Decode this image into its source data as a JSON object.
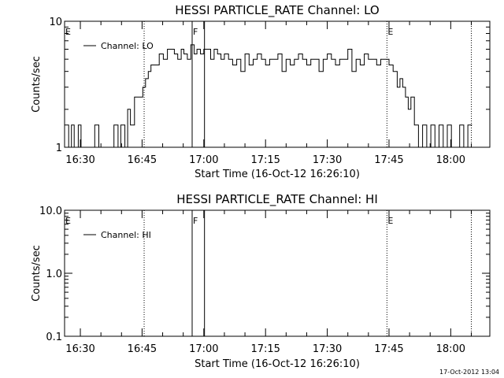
{
  "footer": {
    "timestamp": "17-Oct-2012 13:04"
  },
  "chart_data": [
    {
      "type": "line",
      "title": "HESSI PARTICLE_RATE Channel: LO",
      "xlabel": "Start Time (16-Oct-12 16:26:10)",
      "ylabel": "Counts/sec",
      "y_scale": "log",
      "xlim": [
        "16:26:10",
        "18:09:30"
      ],
      "ylim": [
        1,
        10
      ],
      "x_ticks": [
        "16:30",
        "16:45",
        "17:00",
        "17:15",
        "17:30",
        "17:45",
        "18:00"
      ],
      "y_ticks": [
        "1",
        "10"
      ],
      "legend": {
        "position": "top-left",
        "entries": [
          "Channel: LO"
        ]
      },
      "markers": [
        {
          "label": "E",
          "time": "16:26:10",
          "style": "none"
        },
        {
          "label": "",
          "time": "16:45:30",
          "style": "dotted"
        },
        {
          "label": "F",
          "time": "16:57:10",
          "style": "solid"
        },
        {
          "label": "",
          "time": "17:00:10",
          "style": "solid"
        },
        {
          "label": "E",
          "time": "17:44:30",
          "style": "dotted"
        },
        {
          "label": "",
          "time": "18:05:00",
          "style": "dotted"
        }
      ],
      "series": [
        {
          "name": "Channel: LO",
          "x": [
            "16:26:10",
            "16:27:10",
            "16:27:50",
            "16:28:30",
            "16:29:30",
            "16:30:10",
            "16:31:30",
            "16:32:30",
            "16:33:30",
            "16:34:30",
            "16:36:10",
            "16:37:30",
            "16:38:10",
            "16:39:10",
            "16:39:50",
            "16:40:50",
            "16:41:30",
            "16:42:10",
            "16:43:10",
            "16:44:10",
            "16:45:10",
            "16:45:50",
            "16:46:30",
            "16:47:10",
            "16:48:10",
            "16:49:10",
            "16:50:10",
            "16:51:10",
            "16:52:10",
            "16:52:50",
            "16:53:40",
            "16:54:30",
            "16:55:10",
            "16:56:00",
            "16:56:50",
            "16:57:40",
            "16:58:20",
            "16:59:10",
            "17:00:00",
            "17:00:50",
            "17:01:40",
            "17:02:30",
            "17:03:20",
            "17:04:10",
            "17:05:00",
            "17:06:00",
            "17:07:00",
            "17:08:00",
            "17:09:00",
            "17:10:00",
            "17:11:00",
            "17:12:00",
            "17:13:00",
            "17:14:00",
            "17:15:00",
            "17:16:00",
            "17:17:00",
            "17:18:00",
            "17:19:00",
            "17:20:00",
            "17:21:00",
            "17:22:00",
            "17:23:00",
            "17:24:00",
            "17:25:00",
            "17:26:00",
            "17:27:00",
            "17:28:00",
            "17:29:00",
            "17:30:00",
            "17:31:00",
            "17:32:00",
            "17:33:00",
            "17:34:00",
            "17:35:00",
            "17:36:00",
            "17:37:00",
            "17:38:00",
            "17:39:00",
            "17:40:00",
            "17:41:00",
            "17:42:00",
            "17:43:00",
            "17:44:00",
            "17:45:00",
            "17:46:00",
            "17:47:00",
            "17:47:40",
            "17:48:20",
            "17:49:00",
            "17:49:40",
            "17:50:20",
            "17:51:10",
            "17:52:10",
            "17:53:10",
            "17:54:10",
            "17:55:10",
            "17:56:10",
            "17:57:10",
            "17:58:10",
            "17:59:10",
            "18:00:10",
            "18:01:10",
            "18:02:10",
            "18:03:10",
            "18:04:10",
            "18:05:10"
          ],
          "y": [
            1.5,
            1,
            1.5,
            1,
            1.5,
            1,
            1,
            1,
            1.5,
            1,
            1,
            1,
            1.5,
            1,
            1.5,
            1,
            2,
            1.5,
            2.5,
            2.5,
            3,
            3.5,
            4,
            4.5,
            4.5,
            5.5,
            5,
            6,
            6,
            5.5,
            5,
            6,
            5.5,
            5,
            6.5,
            5.5,
            6,
            5.5,
            6,
            6,
            5,
            6,
            5.5,
            5,
            5.5,
            5,
            4.5,
            5,
            4,
            5.5,
            4.5,
            5,
            5.5,
            5,
            4.5,
            5,
            5,
            5.5,
            4,
            5,
            4.5,
            5,
            5.5,
            5,
            4.5,
            5,
            5,
            4,
            5,
            5.5,
            5,
            4.5,
            5,
            5,
            6,
            4,
            5,
            4.5,
            5.5,
            5,
            5,
            4.5,
            5,
            5,
            4.5,
            4,
            3,
            3.5,
            3,
            2.5,
            2,
            2.5,
            1.5,
            1,
            1.5,
            1,
            1.5,
            1,
            1.5,
            1,
            1.5,
            1,
            1,
            1.5,
            1,
            1.5,
            1.5
          ]
        }
      ]
    },
    {
      "type": "line",
      "title": "HESSI PARTICLE_RATE Channel: HI",
      "xlabel": "Start Time (16-Oct-12 16:26:10)",
      "ylabel": "Counts/sec",
      "y_scale": "log",
      "xlim": [
        "16:26:10",
        "18:09:30"
      ],
      "ylim": [
        0.1,
        10
      ],
      "x_ticks": [
        "16:30",
        "16:45",
        "17:00",
        "17:15",
        "17:30",
        "17:45",
        "18:00"
      ],
      "y_ticks": [
        "0.1",
        "1.0",
        "10.0"
      ],
      "legend": {
        "position": "top-left",
        "entries": [
          "Channel: HI"
        ]
      },
      "markers": [
        {
          "label": "E",
          "time": "16:26:10",
          "style": "none"
        },
        {
          "label": "",
          "time": "16:45:30",
          "style": "dotted"
        },
        {
          "label": "F",
          "time": "16:57:10",
          "style": "solid"
        },
        {
          "label": "",
          "time": "17:00:10",
          "style": "solid"
        },
        {
          "label": "E",
          "time": "17:44:30",
          "style": "dotted"
        },
        {
          "label": "",
          "time": "18:05:00",
          "style": "dotted"
        }
      ],
      "series": [
        {
          "name": "Channel: HI",
          "x": [],
          "y": []
        }
      ]
    }
  ]
}
